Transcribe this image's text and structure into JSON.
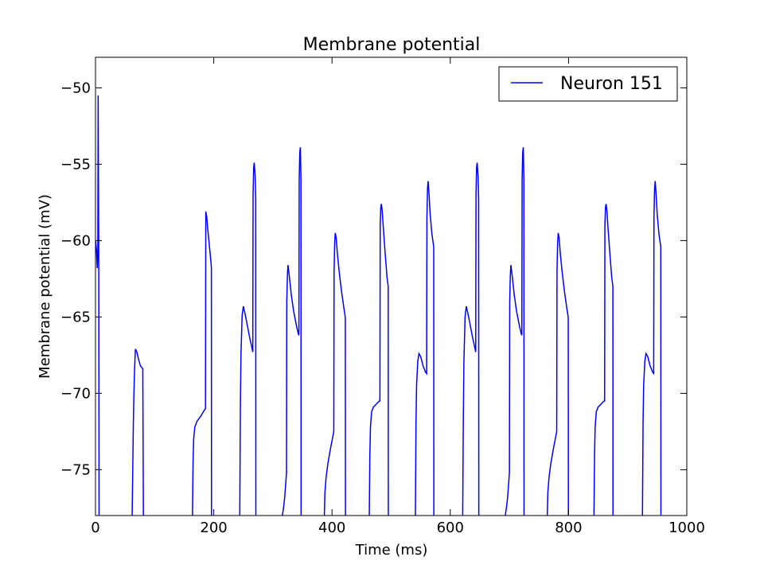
{
  "chart_data": {
    "type": "line",
    "title": "Membrane potential",
    "xlabel": "Time (ms)",
    "ylabel": "Membrane potential (mV)",
    "xlim": [
      0,
      1000
    ],
    "ylim": [
      -78,
      -48
    ],
    "xticks": [
      0,
      200,
      400,
      600,
      800,
      1000
    ],
    "yticks": [
      -75,
      -70,
      -65,
      -60,
      -55,
      -50
    ],
    "xtick_labels": [
      "0",
      "200",
      "400",
      "600",
      "800",
      "1000"
    ],
    "ytick_labels": [
      "−75",
      "−70",
      "−65",
      "−60",
      "−55",
      "−50"
    ],
    "grid": false,
    "legend_position": "top-right",
    "series": [
      {
        "name": "Neuron 151",
        "color": "#0000ff",
        "segments": [
          [
            [
              0,
              -60.0
            ],
            [
              1.5,
              -60.5
            ],
            [
              3,
              -61.8
            ],
            [
              4,
              -60.5
            ],
            [
              4.5,
              -50.5
            ],
            [
              5.5,
              -61.0
            ],
            [
              6,
              -78
            ]
          ],
          [
            [
              62,
              -78
            ],
            [
              64,
              -72.0
            ],
            [
              65,
              -70.0
            ],
            [
              66,
              -68.5
            ],
            [
              67.5,
              -67.1
            ],
            [
              70,
              -67.3
            ],
            [
              73,
              -67.8
            ],
            [
              76,
              -68.2
            ],
            [
              80,
              -68.4
            ],
            [
              81,
              -78
            ]
          ],
          [
            [
              164,
              -78
            ],
            [
              165,
              -74.5
            ],
            [
              166,
              -73.0
            ],
            [
              168,
              -72.2
            ],
            [
              172,
              -71.8
            ],
            [
              178,
              -71.5
            ],
            [
              184,
              -71.1
            ],
            [
              186,
              -71.0
            ],
            [
              186.5,
              -58.1
            ],
            [
              188,
              -58.4
            ],
            [
              190,
              -59.3
            ],
            [
              193,
              -60.5
            ],
            [
              195.5,
              -61.5
            ],
            [
              196,
              -61.8
            ],
            [
              196.2,
              -78
            ]
          ],
          [
            [
              244,
              -78
            ],
            [
              245,
              -71.0
            ],
            [
              246,
              -67.5
            ],
            [
              248,
              -64.9
            ],
            [
              250,
              -64.3
            ],
            [
              253,
              -64.8
            ],
            [
              257,
              -65.6
            ],
            [
              261,
              -66.4
            ],
            [
              265,
              -67.1
            ],
            [
              266,
              -67.3
            ],
            [
              266.5,
              -57.0
            ],
            [
              267.5,
              -55.2
            ],
            [
              268.5,
              -54.9
            ],
            [
              270,
              -55.8
            ],
            [
              271,
              -57.3
            ],
            [
              271.2,
              -78
            ]
          ],
          [
            [
              316,
              -78
            ],
            [
              318,
              -77.5
            ],
            [
              320,
              -76.8
            ],
            [
              323,
              -75.2
            ],
            [
              323.5,
              -64.0
            ],
            [
              324.5,
              -62.3
            ],
            [
              325.5,
              -61.6
            ],
            [
              328,
              -62.4
            ],
            [
              331,
              -63.5
            ],
            [
              335,
              -64.6
            ],
            [
              340,
              -65.6
            ],
            [
              343,
              -66.1
            ],
            [
              344,
              -66.2
            ],
            [
              344.5,
              -56.0
            ],
            [
              345.5,
              -54.2
            ],
            [
              346.5,
              -53.9
            ],
            [
              347.5,
              -56.0
            ],
            [
              347.7,
              -78
            ]
          ],
          [
            [
              387,
              -78
            ],
            [
              388,
              -76.5
            ],
            [
              390,
              -75.5
            ],
            [
              393,
              -74.6
            ],
            [
              397,
              -73.7
            ],
            [
              401,
              -72.9
            ],
            [
              403,
              -72.5
            ],
            [
              403.5,
              -62.0
            ],
            [
              404.5,
              -60.2
            ],
            [
              405.5,
              -59.5
            ],
            [
              407,
              -59.8
            ],
            [
              409,
              -60.8
            ],
            [
              412,
              -62.0
            ],
            [
              416,
              -63.3
            ],
            [
              420,
              -64.4
            ],
            [
              422,
              -64.9
            ],
            [
              422.5,
              -65.1
            ],
            [
              422.7,
              -78
            ]
          ],
          [
            [
              463,
              -78
            ],
            [
              464,
              -74.0
            ],
            [
              465,
              -72.2
            ],
            [
              467,
              -71.2
            ],
            [
              470,
              -70.9
            ],
            [
              475,
              -70.7
            ],
            [
              480,
              -70.5
            ],
            [
              481,
              -70.5
            ],
            [
              481.5,
              -59.0
            ],
            [
              482.5,
              -57.8
            ],
            [
              483.5,
              -57.6
            ],
            [
              485,
              -58.1
            ],
            [
              487,
              -59.3
            ],
            [
              490,
              -60.9
            ],
            [
              493,
              -62.4
            ],
            [
              495,
              -63.0
            ],
            [
              495.2,
              -78
            ]
          ],
          [
            [
              541,
              -78
            ],
            [
              542,
              -72.0
            ],
            [
              543,
              -69.5
            ],
            [
              545,
              -67.9
            ],
            [
              547,
              -67.4
            ],
            [
              550,
              -67.6
            ],
            [
              554,
              -68.2
            ],
            [
              558,
              -68.6
            ],
            [
              560,
              -68.7
            ],
            [
              560.5,
              -58.5
            ],
            [
              561.5,
              -56.6
            ],
            [
              562.5,
              -56.1
            ],
            [
              564,
              -56.9
            ],
            [
              566,
              -58.3
            ],
            [
              569,
              -59.6
            ],
            [
              572,
              -60.4
            ],
            [
              572.2,
              -78
            ]
          ],
          [
            [
              621,
              -78
            ],
            [
              622,
              -72.0
            ],
            [
              623,
              -68.0
            ],
            [
              625,
              -65.0
            ],
            [
              627,
              -64.3
            ],
            [
              630,
              -64.8
            ],
            [
              634,
              -65.6
            ],
            [
              638,
              -66.4
            ],
            [
              642,
              -67.1
            ],
            [
              643,
              -67.3
            ],
            [
              643.5,
              -57.0
            ],
            [
              644.5,
              -55.2
            ],
            [
              645.5,
              -54.9
            ],
            [
              647,
              -55.8
            ],
            [
              648,
              -57.3
            ],
            [
              648.2,
              -78
            ]
          ],
          [
            [
              693,
              -78
            ],
            [
              695,
              -77.5
            ],
            [
              697,
              -76.8
            ],
            [
              700,
              -75.2
            ],
            [
              700.5,
              -64.0
            ],
            [
              701.5,
              -62.3
            ],
            [
              702.5,
              -61.6
            ],
            [
              705,
              -62.4
            ],
            [
              708,
              -63.5
            ],
            [
              712,
              -64.6
            ],
            [
              717,
              -65.6
            ],
            [
              720,
              -66.1
            ],
            [
              721,
              -66.2
            ],
            [
              721.5,
              -56.0
            ],
            [
              722.5,
              -54.2
            ],
            [
              723.5,
              -53.9
            ],
            [
              724.5,
              -56.0
            ],
            [
              724.7,
              -78
            ]
          ],
          [
            [
              764,
              -78
            ],
            [
              765,
              -76.5
            ],
            [
              767,
              -75.5
            ],
            [
              770,
              -74.6
            ],
            [
              774,
              -73.7
            ],
            [
              778,
              -72.9
            ],
            [
              780,
              -72.5
            ],
            [
              780.5,
              -62.0
            ],
            [
              781.5,
              -60.2
            ],
            [
              782.5,
              -59.5
            ],
            [
              784,
              -59.8
            ],
            [
              786,
              -60.8
            ],
            [
              789,
              -62.0
            ],
            [
              793,
              -63.3
            ],
            [
              797,
              -64.4
            ],
            [
              799,
              -64.9
            ],
            [
              799.5,
              -65.1
            ],
            [
              799.7,
              -78
            ]
          ],
          [
            [
              843,
              -78
            ],
            [
              844,
              -74.0
            ],
            [
              845,
              -72.2
            ],
            [
              847,
              -71.2
            ],
            [
              850,
              -70.9
            ],
            [
              855,
              -70.7
            ],
            [
              860,
              -70.5
            ],
            [
              861,
              -70.5
            ],
            [
              861.5,
              -59.0
            ],
            [
              862.5,
              -57.8
            ],
            [
              863.5,
              -57.6
            ],
            [
              865,
              -58.1
            ],
            [
              867,
              -59.3
            ],
            [
              870,
              -60.9
            ],
            [
              873,
              -62.4
            ],
            [
              875,
              -63.0
            ],
            [
              875.2,
              -78
            ]
          ],
          [
            [
              925,
              -78
            ],
            [
              926,
              -72.0
            ],
            [
              927,
              -69.5
            ],
            [
              929,
              -67.9
            ],
            [
              931,
              -67.4
            ],
            [
              934,
              -67.6
            ],
            [
              938,
              -68.2
            ],
            [
              942,
              -68.6
            ],
            [
              944,
              -68.7
            ],
            [
              944.5,
              -58.5
            ],
            [
              945.5,
              -56.6
            ],
            [
              946.5,
              -56.1
            ],
            [
              948,
              -56.9
            ],
            [
              950,
              -58.3
            ],
            [
              953,
              -59.6
            ],
            [
              956,
              -60.4
            ],
            [
              956.2,
              -78
            ]
          ]
        ]
      }
    ]
  }
}
